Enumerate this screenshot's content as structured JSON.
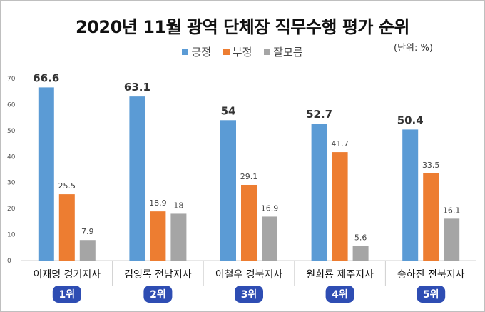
{
  "chart_data": {
    "type": "bar",
    "title": "2020년 11월 광역 단체장 직무수행 평가 순위",
    "unit_note": "(단위: %)",
    "categories": [
      "이재명 경기지사",
      "김영록 전남지사",
      "이철우 경북지사",
      "원희룡 제주지사",
      "송하진 전북지사"
    ],
    "ranks": [
      "1위",
      "2위",
      "3위",
      "4위",
      "5위"
    ],
    "series": [
      {
        "name": "긍정",
        "values": [
          66.6,
          63.1,
          54,
          52.7,
          50.4
        ],
        "color": "#5b9bd5",
        "label_labels": [
          "66.6",
          "63.1",
          "54",
          "52.7",
          "50.4"
        ]
      },
      {
        "name": "부정",
        "values": [
          25.5,
          18.9,
          29.1,
          41.7,
          33.5
        ],
        "color": "#ed7d31",
        "label_labels": [
          "25.5",
          "18.9",
          "29.1",
          "41.7",
          "33.5"
        ]
      },
      {
        "name": "잘모름",
        "values": [
          7.9,
          18,
          16.9,
          5.6,
          16.1
        ],
        "color": "#a5a5a5",
        "label_labels": [
          "7.9",
          "18",
          "16.9",
          "5.6",
          "16.1"
        ]
      }
    ],
    "ylim": [
      0,
      70
    ],
    "yticks": [
      0,
      10,
      20,
      30,
      40,
      50,
      60,
      70
    ],
    "grid": false,
    "legend_position": "top-center",
    "badge_color": "#2e4db3"
  }
}
